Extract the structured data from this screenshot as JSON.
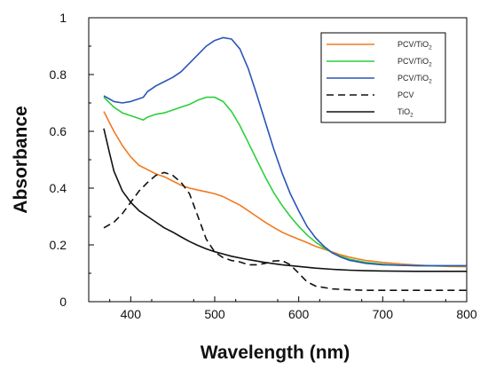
{
  "chart_data": {
    "type": "line",
    "title": "",
    "xlabel": "Wavelength (nm)",
    "ylabel": "Absorbance",
    "xlim": [
      350,
      800
    ],
    "ylim": [
      0,
      1
    ],
    "xticks": [
      400,
      500,
      600,
      700,
      800
    ],
    "yticks": [
      0,
      0.2,
      0.4,
      0.6,
      0.8,
      1
    ],
    "grid": false,
    "legend_position": "top-right",
    "series": [
      {
        "name": "PCV/TiO2",
        "color": "#f07a20",
        "dash": "solid",
        "x": [
          368,
          380,
          390,
          400,
          410,
          420,
          430,
          440,
          450,
          460,
          470,
          480,
          490,
          500,
          510,
          520,
          530,
          540,
          550,
          560,
          570,
          580,
          590,
          600,
          610,
          620,
          630,
          640,
          650,
          660,
          680,
          700,
          720,
          740,
          760,
          780,
          800
        ],
        "y": [
          0.67,
          0.6,
          0.55,
          0.51,
          0.48,
          0.465,
          0.45,
          0.44,
          0.425,
          0.41,
          0.4,
          0.393,
          0.387,
          0.38,
          0.37,
          0.355,
          0.34,
          0.32,
          0.3,
          0.28,
          0.262,
          0.245,
          0.232,
          0.22,
          0.208,
          0.195,
          0.185,
          0.175,
          0.165,
          0.157,
          0.145,
          0.138,
          0.133,
          0.129,
          0.126,
          0.124,
          0.123
        ]
      },
      {
        "name": "PCV/TiO2",
        "color": "#2ccf3c",
        "dash": "solid",
        "x": [
          368,
          380,
          390,
          400,
          410,
          415,
          420,
          430,
          440,
          450,
          460,
          470,
          480,
          490,
          500,
          510,
          520,
          530,
          540,
          550,
          560,
          570,
          580,
          590,
          600,
          610,
          620,
          630,
          640,
          650,
          660,
          680,
          700,
          720,
          740,
          760,
          780,
          800
        ],
        "y": [
          0.72,
          0.685,
          0.665,
          0.655,
          0.645,
          0.64,
          0.65,
          0.66,
          0.665,
          0.675,
          0.685,
          0.695,
          0.71,
          0.72,
          0.72,
          0.705,
          0.67,
          0.62,
          0.56,
          0.5,
          0.44,
          0.385,
          0.34,
          0.3,
          0.265,
          0.235,
          0.21,
          0.19,
          0.172,
          0.16,
          0.15,
          0.138,
          0.132,
          0.128,
          0.127,
          0.126,
          0.126,
          0.126
        ]
      },
      {
        "name": "PCV/TiO2",
        "color": "#2a55b8",
        "dash": "solid",
        "x": [
          368,
          380,
          390,
          400,
          410,
          415,
          420,
          430,
          440,
          450,
          460,
          470,
          480,
          490,
          500,
          510,
          520,
          530,
          540,
          550,
          560,
          570,
          580,
          590,
          600,
          610,
          620,
          630,
          640,
          650,
          660,
          680,
          700,
          720,
          740,
          760,
          780,
          800
        ],
        "y": [
          0.725,
          0.705,
          0.7,
          0.705,
          0.715,
          0.72,
          0.74,
          0.76,
          0.775,
          0.79,
          0.81,
          0.84,
          0.87,
          0.9,
          0.92,
          0.93,
          0.925,
          0.89,
          0.82,
          0.73,
          0.635,
          0.54,
          0.455,
          0.38,
          0.32,
          0.265,
          0.225,
          0.195,
          0.172,
          0.157,
          0.146,
          0.135,
          0.13,
          0.128,
          0.127,
          0.127,
          0.127,
          0.127
        ]
      },
      {
        "name": "PCV",
        "color": "#111111",
        "dash": "dashed",
        "x": [
          368,
          380,
          390,
          400,
          410,
          420,
          430,
          440,
          450,
          460,
          470,
          480,
          490,
          500,
          510,
          520,
          530,
          540,
          550,
          560,
          570,
          580,
          590,
          600,
          610,
          620,
          640,
          660,
          680,
          700,
          720,
          740,
          760,
          780,
          800
        ],
        "y": [
          0.26,
          0.28,
          0.31,
          0.35,
          0.39,
          0.42,
          0.445,
          0.455,
          0.445,
          0.42,
          0.38,
          0.3,
          0.22,
          0.175,
          0.155,
          0.145,
          0.14,
          0.13,
          0.13,
          0.135,
          0.143,
          0.145,
          0.13,
          0.1,
          0.07,
          0.055,
          0.045,
          0.042,
          0.04,
          0.04,
          0.04,
          0.04,
          0.04,
          0.04,
          0.04
        ]
      },
      {
        "name": "TiO2",
        "color": "#111111",
        "dash": "solid",
        "x": [
          368,
          375,
          380,
          390,
          400,
          410,
          420,
          430,
          440,
          450,
          460,
          470,
          480,
          490,
          500,
          520,
          540,
          560,
          580,
          600,
          620,
          640,
          660,
          680,
          700,
          740,
          780,
          800
        ],
        "y": [
          0.61,
          0.52,
          0.46,
          0.39,
          0.35,
          0.32,
          0.3,
          0.28,
          0.26,
          0.245,
          0.228,
          0.212,
          0.198,
          0.186,
          0.176,
          0.16,
          0.148,
          0.138,
          0.13,
          0.124,
          0.118,
          0.114,
          0.111,
          0.109,
          0.108,
          0.107,
          0.107,
          0.107
        ]
      }
    ]
  }
}
